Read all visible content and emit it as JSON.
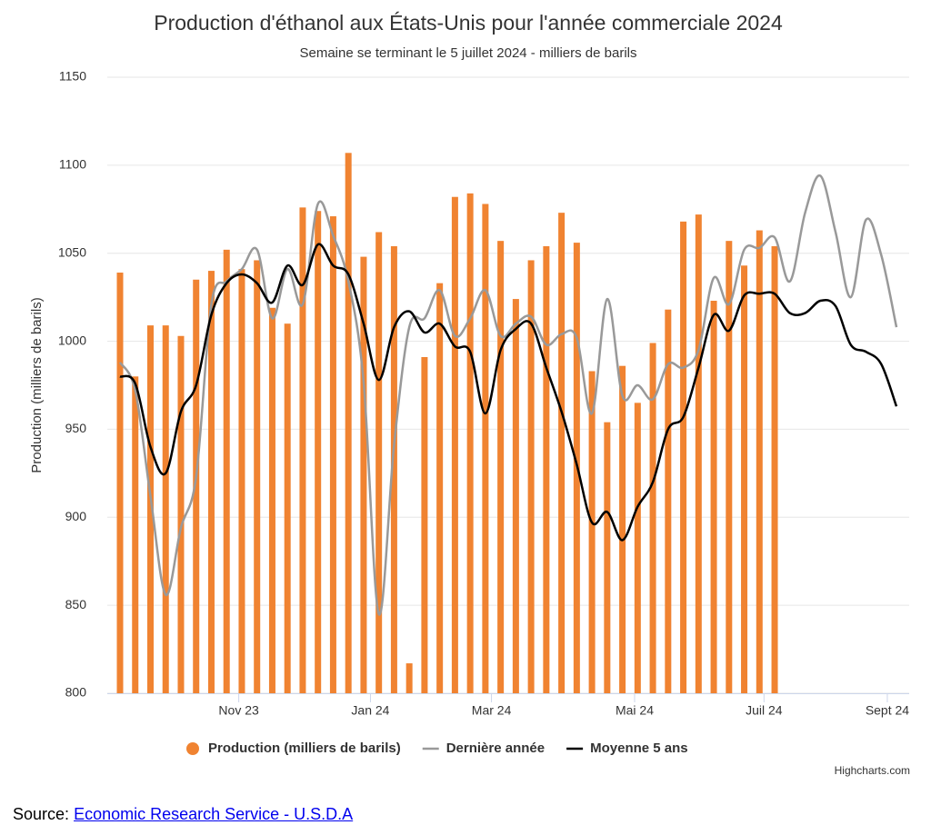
{
  "chart_data": {
    "type": "bar-line",
    "title": "Production d'éthanol aux États-Unis pour l'année commerciale 2024",
    "subtitle": "Semaine se terminant le 5 juillet 2024 - milliers de barils",
    "y_label": "Production (milliers de barils)",
    "categories": [
      null,
      null,
      null,
      null,
      null,
      null,
      null,
      null,
      null,
      null,
      null,
      null,
      null,
      null,
      null,
      null,
      null,
      null,
      null,
      null,
      null,
      null,
      null,
      null,
      null,
      null,
      null,
      null,
      null,
      null,
      null,
      null,
      null,
      null,
      null,
      null,
      null,
      null,
      null,
      null,
      null,
      null,
      null,
      null,
      null,
      null,
      null,
      null,
      null,
      null,
      null,
      null
    ],
    "xticks": [
      {
        "value": 7.8,
        "label": "Nov 23"
      },
      {
        "value": 16.45,
        "label": "Jan 24"
      },
      {
        "value": 24.4,
        "label": "Mar 24"
      },
      {
        "value": 33.8,
        "label": "Mai 24"
      },
      {
        "value": 42.3,
        "label": "Juil 24"
      },
      {
        "value": 50.4,
        "label": "Sept 24"
      }
    ],
    "ylim": [
      800,
      1150
    ],
    "yticks": [
      800,
      850,
      900,
      950,
      1000,
      1050,
      1100,
      1150
    ],
    "grid": true,
    "series": [
      {
        "name": "Production (milliers de barils)",
        "type": "bar",
        "color": "#f08331",
        "values": [
          1039,
          980,
          1009,
          1009,
          1003,
          1035,
          1040,
          1052,
          1041,
          1046,
          1019,
          1010,
          1076,
          1074,
          1071,
          1107,
          1048,
          1062,
          1054,
          817,
          991,
          1033,
          1082,
          1084,
          1078,
          1057,
          1024,
          1046,
          1054,
          1073,
          1056,
          983,
          954,
          986,
          965,
          999,
          1018,
          1068,
          1072,
          1023,
          1057,
          1043,
          1063,
          1054,
          null,
          null,
          null,
          null,
          null,
          null,
          null,
          null
        ]
      },
      {
        "name": "Dernière année",
        "type": "line",
        "color": "#999999",
        "values": [
          988,
          972,
          912,
          856,
          894,
          923,
          1021,
          1034,
          1041,
          1052,
          1013,
          1041,
          1021,
          1078,
          1060,
          1034,
          977,
          845,
          941,
          1008,
          1013,
          1029,
          1003,
          1013,
          1029,
          1003,
          1010,
          1014,
          998,
          1004,
          1002,
          959,
          1024,
          969,
          975,
          967,
          987,
          985,
          995,
          1036,
          1021,
          1052,
          1053,
          1059,
          1034,
          1073,
          1094,
          1062,
          1025,
          1069,
          1049,
          1008
        ]
      },
      {
        "name": "Moyenne 5 ans",
        "type": "line",
        "color": "#000000",
        "values": [
          980,
          976,
          940,
          925,
          960,
          975,
          1015,
          1033,
          1038,
          1033,
          1022,
          1043,
          1032,
          1055,
          1043,
          1038,
          1010,
          978,
          1008,
          1017,
          1005,
          1010,
          997,
          994,
          959,
          995,
          1007,
          1010,
          985,
          960,
          930,
          897,
          903,
          887,
          906,
          920,
          950,
          957,
          985,
          1015,
          1006,
          1026,
          1027,
          1027,
          1016,
          1016,
          1023,
          1020,
          998,
          994,
          987,
          963
        ]
      }
    ],
    "legend": "bottom",
    "credits": "Highcharts.com",
    "source_prefix": "Source:",
    "source": "Economic Research Service - U.S.D.A"
  }
}
